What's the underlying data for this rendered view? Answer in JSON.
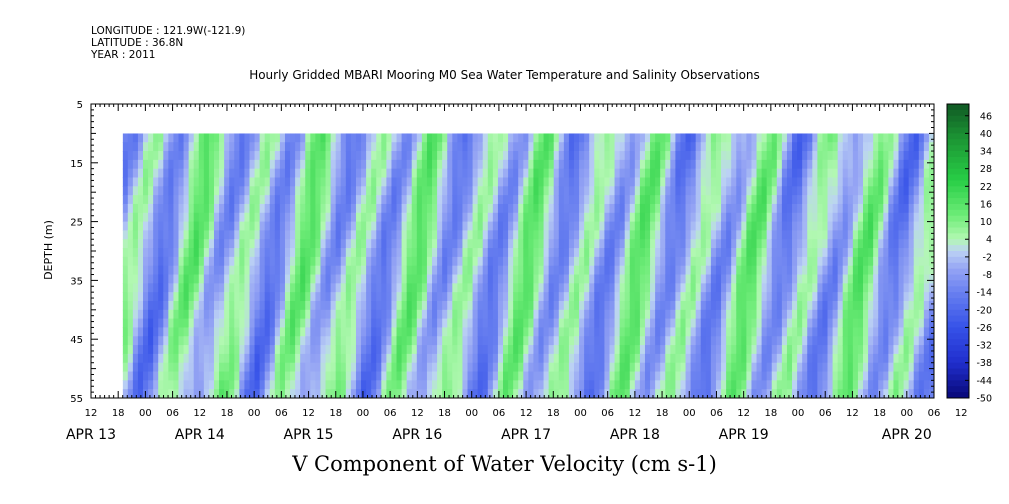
{
  "header": {
    "longitude": "LONGITUDE : 121.9W(-121.9)",
    "latitude": "LATITUDE : 36.8N",
    "year": "YEAR : 2011"
  },
  "plot_title": "Hourly Gridded MBARI Mooring M0 Sea Water Temperature and Salinity Observations",
  "main_title": "V Component of Water Velocity (cm s-1)",
  "chart_data": {
    "type": "heatmap",
    "title": "V Component of Water Velocity (cm s-1)",
    "subtitle": "Hourly Gridded MBARI Mooring M0 Sea Water Temperature and Salinity Observations",
    "ylabel": "DEPTH (m)",
    "xlabel": "",
    "y_axis": {
      "range": [
        5,
        55
      ],
      "inverted": true,
      "ticks": [
        5,
        15,
        25,
        35,
        45,
        55
      ]
    },
    "x_axis": {
      "range_hours": [
        0,
        186
      ],
      "hour_tick_labels": [
        "12",
        "18",
        "00",
        "06",
        "12",
        "18",
        "00",
        "06",
        "12",
        "18",
        "00",
        "06",
        "12",
        "18",
        "00",
        "06",
        "12",
        "18",
        "00",
        "06",
        "12",
        "18",
        "00",
        "06",
        "12",
        "18",
        "00",
        "06",
        "12",
        "18",
        "00",
        "06",
        "12"
      ],
      "date_labels": [
        "APR 13",
        "APR 14",
        "APR 15",
        "APR 16",
        "APR 17",
        "APR 18",
        "APR 19",
        "APR 20"
      ]
    },
    "data_start": {
      "date": "APR 13",
      "hour": 19
    },
    "data_depth_range": [
      10,
      55
    ],
    "colorbar": {
      "labels": [
        "46",
        "40",
        "34",
        "28",
        "22",
        "16",
        "10",
        "4",
        "-2",
        "-8",
        "-14",
        "-20",
        "-26",
        "-32",
        "-38",
        "-44",
        "-50"
      ],
      "range": [
        -50,
        50
      ]
    },
    "colors": {
      "negative_mid": "#8f9cf0",
      "negative_strong": "#2c46d6",
      "positive_mid": "#a6f0a6",
      "positive_strong": "#1ec850"
    }
  }
}
